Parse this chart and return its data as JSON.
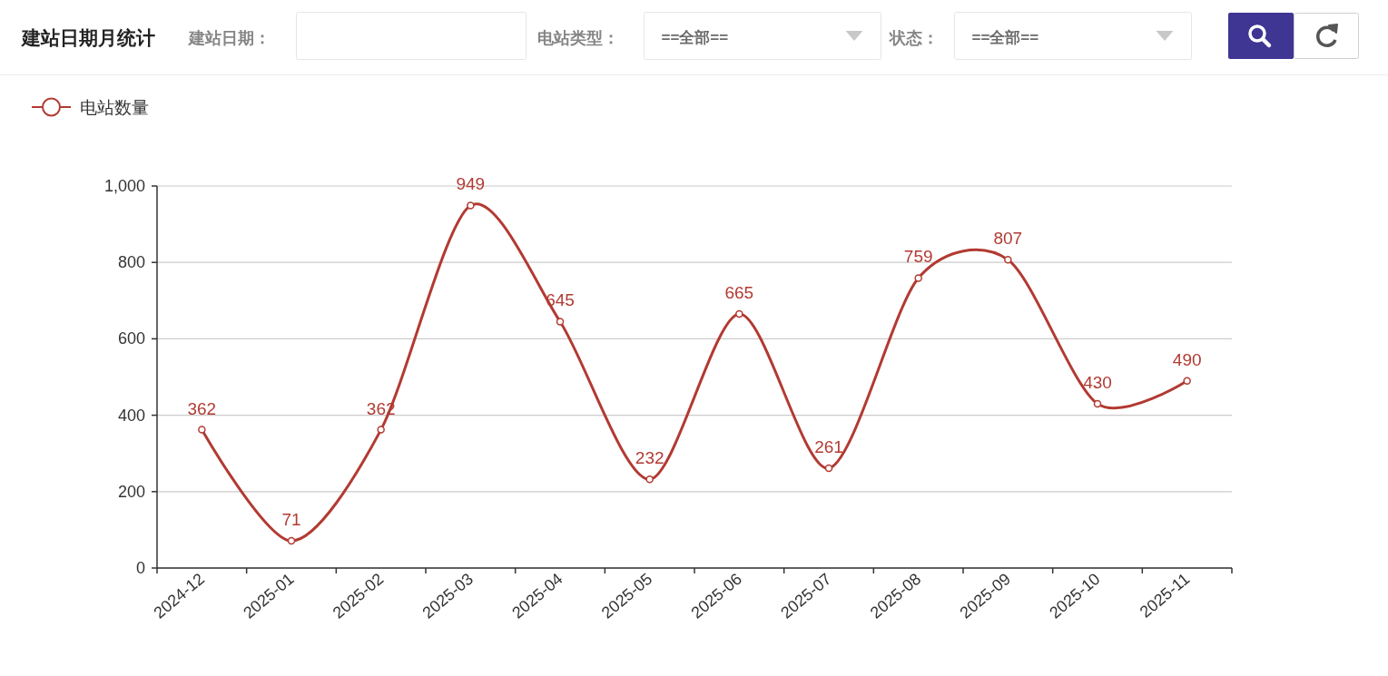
{
  "chart_data": {
    "type": "line",
    "title": "建站日期月统计",
    "annotations": [
      "建站日期：",
      "电站类型：",
      "==全部==",
      "状态：",
      "==全部=="
    ],
    "categories": [
      "2024-12",
      "2025-01",
      "2025-02",
      "2025-03",
      "2025-04",
      "2025-05",
      "2025-06",
      "2025-07",
      "2025-08",
      "2025-09",
      "2025-10",
      "2025-11"
    ],
    "series": [
      {
        "name": "电站数量",
        "color": "#b23a32",
        "values": [
          362,
          71,
          362,
          949,
          645,
          232,
          665,
          261,
          759,
          807,
          430,
          490
        ]
      }
    ],
    "ylim": [
      0,
      1000
    ],
    "yticks": [
      0,
      200,
      400,
      600,
      800,
      {
        "value": 1000,
        "label": "1,000"
      }
    ],
    "grid": "y",
    "legend": "top left",
    "marker": "circle",
    "data_labels": true
  }
}
